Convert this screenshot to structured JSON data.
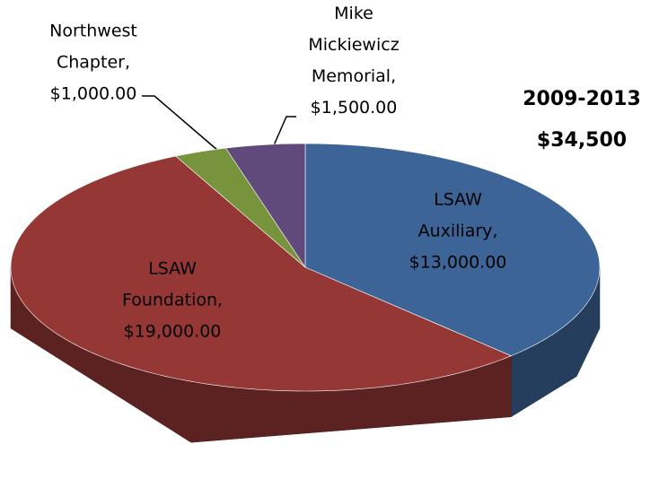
{
  "chart_data": {
    "type": "pie",
    "title": "2009-2013",
    "subtitle": "$34,500",
    "categories": [
      "LSAW Auxiliary",
      "LSAW Foundation",
      "Northwest Chapter",
      "Mike Mickiewicz Memorial"
    ],
    "values": [
      13000,
      19000,
      1000,
      1500
    ],
    "value_labels": [
      "$13,000.00",
      "$19,000.00",
      "$1,000.00",
      "$1,500.00"
    ],
    "colors": [
      "#3c6496",
      "#953735",
      "#77933c",
      "#604a7b"
    ]
  }
}
